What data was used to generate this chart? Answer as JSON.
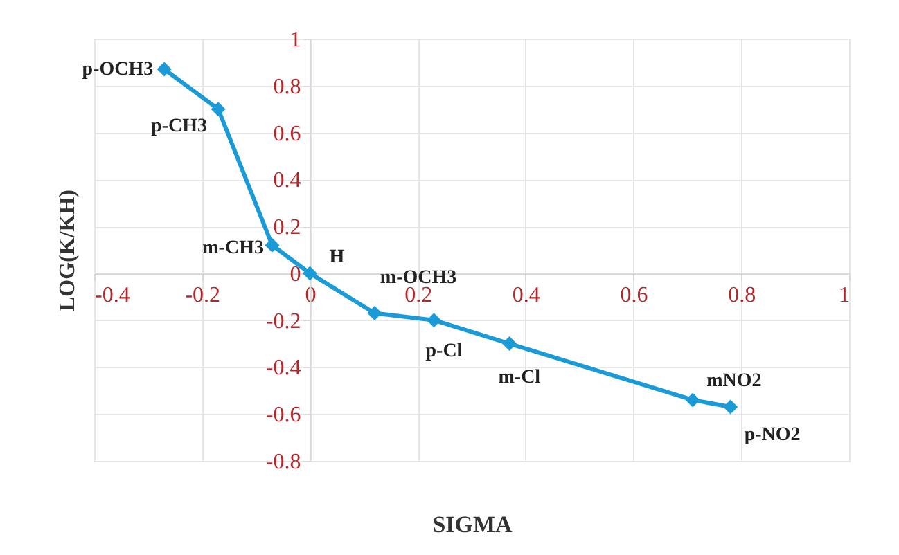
{
  "chart_data": {
    "type": "line",
    "xlabel": "SIGMA",
    "ylabel": "LOG(K/KH)",
    "x": [
      -0.27,
      -0.17,
      -0.07,
      0,
      0.12,
      0.23,
      0.37,
      0.71,
      0.78
    ],
    "series": [
      {
        "color": "#1a9ad6",
        "values": [
          0.87,
          0.7,
          0.12,
          0,
          -0.17,
          -0.2,
          -0.3,
          -0.54,
          -0.57
        ]
      }
    ],
    "xlim": [
      -0.4,
      1
    ],
    "xticks": [
      -0.4,
      -0.2,
      0,
      0.2,
      0.4,
      0.6,
      0.8,
      1
    ],
    "ylim": [
      -0.8,
      1
    ],
    "yticks": [
      -0.8,
      -0.6,
      -0.4,
      -0.2,
      0,
      0.2,
      0.4,
      0.6,
      0.8,
      1
    ],
    "grid": true,
    "marker": "diamond",
    "line_style": "solid",
    "annotations": [
      {
        "text": "p-OCH3",
        "x": -0.27,
        "y": 0.87
      },
      {
        "text": "p-CH3",
        "x": -0.17,
        "y": 0.7
      },
      {
        "text": "m-CH3",
        "x": -0.07,
        "y": 0.12
      },
      {
        "text": "H",
        "x": 0,
        "y": 0
      },
      {
        "text": "m-OCH3",
        "x": 0.12,
        "y": -0.17
      },
      {
        "text": "p-Cl",
        "x": 0.23,
        "y": -0.2
      },
      {
        "text": "m-Cl",
        "x": 0.37,
        "y": -0.3
      },
      {
        "text": "mNO2",
        "x": 0.71,
        "y": -0.54
      },
      {
        "text": "p-NO2",
        "x": 0.78,
        "y": -0.57
      }
    ]
  }
}
